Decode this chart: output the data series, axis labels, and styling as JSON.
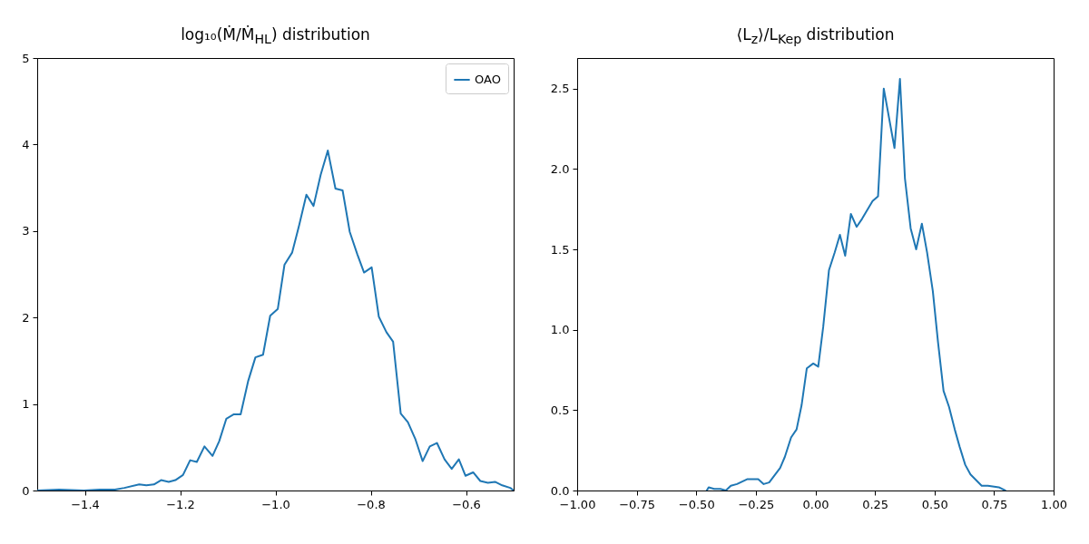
{
  "chart_data": [
    {
      "type": "line",
      "title": "log₁₀(Ṁ/Ṁ$_{HL}$) distribution",
      "legend": "top right",
      "line_style": "solid",
      "xlim": [
        -1.5,
        -0.5
      ],
      "ylim": [
        0,
        5
      ],
      "xticks": [
        {
          "value": -1.4,
          "label": "−1.4"
        },
        {
          "value": -1.2,
          "label": "−1.2"
        },
        {
          "value": -1.0,
          "label": "−1.0"
        },
        {
          "value": -0.8,
          "label": "−0.8"
        },
        {
          "value": -0.6,
          "label": "−0.6"
        }
      ],
      "yticks": [
        0,
        1,
        2,
        3,
        4,
        5
      ],
      "series": [
        {
          "name": "OAO",
          "color": "#1f77b4",
          "x": [
            -1.5,
            -1.454,
            -1.402,
            -1.369,
            -1.337,
            -1.317,
            -1.286,
            -1.271,
            -1.255,
            -1.24,
            -1.224,
            -1.21,
            -1.194,
            -1.179,
            -1.165,
            -1.149,
            -1.132,
            -1.118,
            -1.103,
            -1.088,
            -1.073,
            -1.057,
            -1.042,
            -1.026,
            -1.011,
            -0.995,
            -0.981,
            -0.965,
            -0.95,
            -0.935,
            -0.92,
            -0.905,
            -0.89,
            -0.874,
            -0.859,
            -0.844,
            -0.828,
            -0.814,
            -0.798,
            -0.783,
            -0.767,
            -0.753,
            -0.737,
            -0.722,
            -0.706,
            -0.691,
            -0.676,
            -0.661,
            -0.645,
            -0.63,
            -0.615,
            -0.601,
            -0.585,
            -0.57,
            -0.554,
            -0.539,
            -0.524,
            -0.507,
            -0.5
          ],
          "values": [
            0,
            0.01,
            0,
            0.01,
            0.01,
            0.03,
            0.07,
            0.06,
            0.07,
            0.12,
            0.1,
            0.12,
            0.18,
            0.35,
            0.33,
            0.51,
            0.4,
            0.57,
            0.83,
            0.88,
            0.88,
            1.27,
            1.54,
            1.57,
            2.02,
            2.1,
            2.61,
            2.75,
            3.07,
            3.42,
            3.29,
            3.65,
            3.93,
            3.49,
            3.47,
            2.99,
            2.73,
            2.52,
            2.58,
            2.01,
            1.83,
            1.72,
            0.89,
            0.79,
            0.59,
            0.34,
            0.51,
            0.55,
            0.36,
            0.25,
            0.36,
            0.17,
            0.21,
            0.11,
            0.09,
            0.1,
            0.06,
            0.03,
            0
          ]
        }
      ]
    },
    {
      "type": "line",
      "title": "⟨L$_{z}$⟩/L$_{Kep}$ distribution",
      "line_style": "solid",
      "xlim": [
        -1,
        1
      ],
      "ylim": [
        0,
        2.69
      ],
      "xticks": [
        {
          "value": -1,
          "label": "−1.00"
        },
        {
          "value": -0.75,
          "label": "−0.75"
        },
        {
          "value": -0.5,
          "label": "−0.50"
        },
        {
          "value": -0.25,
          "label": "−0.25"
        },
        {
          "value": 0,
          "label": "0.00"
        },
        {
          "value": 0.25,
          "label": "0.25"
        },
        {
          "value": 0.5,
          "label": "0.50"
        },
        {
          "value": 0.75,
          "label": "0.75"
        },
        {
          "value": 1,
          "label": "1.00"
        }
      ],
      "yticks": [
        {
          "value": 0,
          "label": "0.0"
        },
        {
          "value": 0.5,
          "label": "0.5"
        },
        {
          "value": 1,
          "label": "1.0"
        },
        {
          "value": 1.5,
          "label": "1.5"
        },
        {
          "value": 2,
          "label": "2.0"
        },
        {
          "value": 2.5,
          "label": "2.5"
        }
      ],
      "series": [
        {
          "color": "#1f77b4",
          "x": [
            -0.456,
            -0.448,
            -0.425,
            -0.399,
            -0.376,
            -0.355,
            -0.329,
            -0.287,
            -0.24,
            -0.217,
            -0.194,
            -0.148,
            -0.128,
            -0.102,
            -0.079,
            -0.058,
            -0.036,
            -0.009,
            0.012,
            0.033,
            0.057,
            0.081,
            0.103,
            0.125,
            0.149,
            0.173,
            0.196,
            0.24,
            0.263,
            0.287,
            0.332,
            0.355,
            0.376,
            0.4,
            0.423,
            0.447,
            0.469,
            0.493,
            0.515,
            0.538,
            0.561,
            0.585,
            0.606,
            0.629,
            0.651,
            0.698,
            0.724,
            0.77,
            0.797
          ],
          "values": [
            0,
            0.02,
            0.01,
            0.01,
            0,
            0.03,
            0.04,
            0.07,
            0.07,
            0.04,
            0.05,
            0.14,
            0.21,
            0.33,
            0.38,
            0.53,
            0.76,
            0.79,
            0.77,
            1.02,
            1.37,
            1.48,
            1.59,
            1.46,
            1.72,
            1.64,
            1.69,
            1.8,
            1.83,
            2.5,
            2.13,
            2.56,
            1.94,
            1.63,
            1.5,
            1.66,
            1.48,
            1.24,
            0.92,
            0.62,
            0.52,
            0.38,
            0.27,
            0.16,
            0.1,
            0.03,
            0.03,
            0.02,
            0
          ]
        }
      ]
    }
  ]
}
